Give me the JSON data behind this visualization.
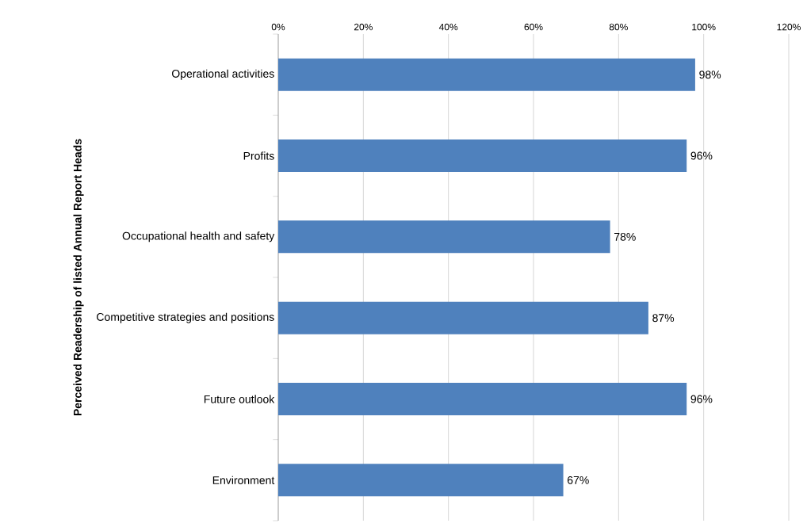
{
  "chart_data": {
    "type": "bar",
    "orientation": "horizontal",
    "ylabel": "Perceived Readership of listed Annual Report Heads",
    "categories": [
      "Operational activities",
      "Profits",
      "Occupational health and safety",
      "Competitive strategies and positions",
      "Future outlook",
      "Environment"
    ],
    "values": [
      98,
      96,
      78,
      87,
      96,
      67
    ],
    "value_labels": [
      "98%",
      "96%",
      "78%",
      "87%",
      "96%",
      "67%"
    ],
    "color": "#4f81bd",
    "xlim": [
      0,
      120
    ],
    "xticks": [
      {
        "value": 0,
        "label": "0%"
      },
      {
        "value": 20,
        "label": "20%"
      },
      {
        "value": 40,
        "label": "40%"
      },
      {
        "value": 60,
        "label": "60%"
      },
      {
        "value": 80,
        "label": "80%"
      },
      {
        "value": 100,
        "label": "100%"
      },
      {
        "value": 120,
        "label": "120%"
      }
    ],
    "grid": "x"
  }
}
